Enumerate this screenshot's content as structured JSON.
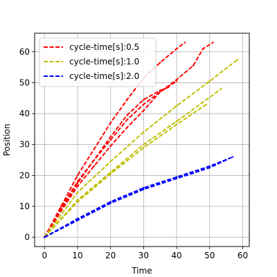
{
  "chart_data": {
    "type": "line",
    "title": "",
    "xlabel": "Time",
    "ylabel": "Position",
    "xlim": [
      -3,
      62
    ],
    "ylim": [
      -3,
      66
    ],
    "xticks": [
      0,
      10,
      20,
      30,
      40,
      50,
      60
    ],
    "yticks": [
      0,
      10,
      20,
      30,
      40,
      50,
      60
    ],
    "grid": true,
    "legend_position": "top-left",
    "series": [
      {
        "name": "cycle-time[s]:0.5",
        "color": "#ff0000",
        "runs": [
          {
            "x": [
              0,
              5,
              10,
              15,
              20,
              25,
              30,
              35,
              40,
              42.5
            ],
            "y": [
              0,
              10,
              20,
              28.5,
              37,
              44.5,
              51.5,
              56.5,
              61,
              63
            ]
          },
          {
            "x": [
              0,
              5,
              10,
              15,
              20,
              25,
              30,
              35,
              40,
              45,
              48,
              51
            ],
            "y": [
              0,
              9,
              17.5,
              25,
              31.5,
              38,
              43,
              47,
              51,
              55.5,
              61,
              63
            ]
          },
          {
            "x": [
              0,
              5,
              10,
              15,
              20,
              25,
              30,
              35,
              37.5
            ],
            "y": [
              0,
              9.5,
              18,
              25,
              32.5,
              39.5,
              44.5,
              47.5,
              48.5
            ]
          },
          {
            "x": [
              0,
              5,
              10,
              15,
              20,
              25,
              30,
              35,
              40
            ],
            "y": [
              0,
              8.5,
              16.5,
              23,
              29.5,
              35.5,
              41,
              47,
              50.5
            ]
          }
        ]
      },
      {
        "name": "cycle-time[s]:1.0",
        "color": "#bfbf00",
        "runs": [
          {
            "x": [
              0,
              10,
              20,
              30,
              40,
              50,
              58.5
            ],
            "y": [
              0,
              14.5,
              24.5,
              34,
              42.5,
              50.5,
              57.5
            ]
          },
          {
            "x": [
              0,
              10,
              20,
              30,
              40,
              49,
              53.5
            ],
            "y": [
              0,
              12,
              21,
              30,
              37.5,
              44.5,
              48
            ]
          },
          {
            "x": [
              0,
              10,
              20,
              30,
              40,
              49
            ],
            "y": [
              0,
              11.5,
              20.5,
              29,
              36.5,
              43
            ]
          }
        ]
      },
      {
        "name": "cycle-time[s]:2.0",
        "color": "#0000ff",
        "runs": [
          {
            "x": [
              0,
              10,
              20,
              30,
              40,
              50,
              57
            ],
            "y": [
              0,
              6,
              11.5,
              16,
              19.5,
              23,
              26
            ]
          },
          {
            "x": [
              0,
              10,
              20,
              30,
              40,
              50,
              55
            ],
            "y": [
              0,
              5.5,
              11,
              15.5,
              19,
              22.5,
              25
            ]
          }
        ]
      }
    ]
  }
}
